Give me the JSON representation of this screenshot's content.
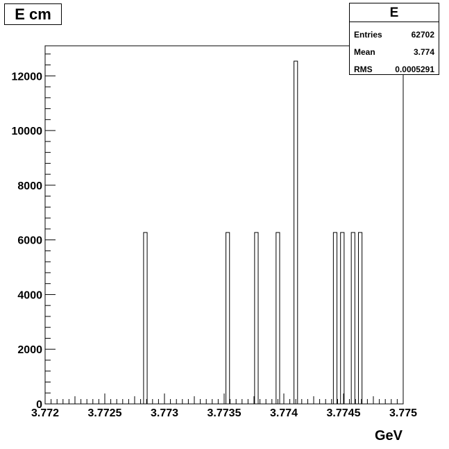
{
  "title": "E cm",
  "stats": {
    "name": "E",
    "rows": [
      {
        "label": "Entries",
        "value": "62702"
      },
      {
        "label": "Mean",
        "value": "3.774"
      },
      {
        "label": "RMS",
        "value": "0.0005291"
      }
    ]
  },
  "chart_data": {
    "type": "bar",
    "title": "E cm",
    "xlabel": "GeV",
    "ylabel": "",
    "xlim": [
      3.772,
      3.775
    ],
    "ylim": [
      0,
      13100
    ],
    "x_ticks": [
      "3.772",
      "3.7725",
      "3.773",
      "3.7735",
      "3.774",
      "3.7745",
      "3.775"
    ],
    "x_tick_values": [
      3.772,
      3.7725,
      3.773,
      3.7735,
      3.774,
      3.7745,
      3.775
    ],
    "y_ticks": [
      "0",
      "2000",
      "4000",
      "6000",
      "8000",
      "10000",
      "12000"
    ],
    "y_tick_values": [
      0,
      2000,
      4000,
      6000,
      8000,
      10000,
      12000
    ],
    "bin_width": 3e-05,
    "bins": [
      {
        "x": 3.77284,
        "value": 6270
      },
      {
        "x": 3.77353,
        "value": 6270
      },
      {
        "x": 3.77377,
        "value": 6270
      },
      {
        "x": 3.77395,
        "value": 6270
      },
      {
        "x": 3.7741,
        "value": 12540
      },
      {
        "x": 3.77443,
        "value": 6270
      },
      {
        "x": 3.77449,
        "value": 6270
      },
      {
        "x": 3.77458,
        "value": 6270
      },
      {
        "x": 3.77464,
        "value": 6270
      }
    ],
    "grid": false,
    "legend": "none"
  }
}
